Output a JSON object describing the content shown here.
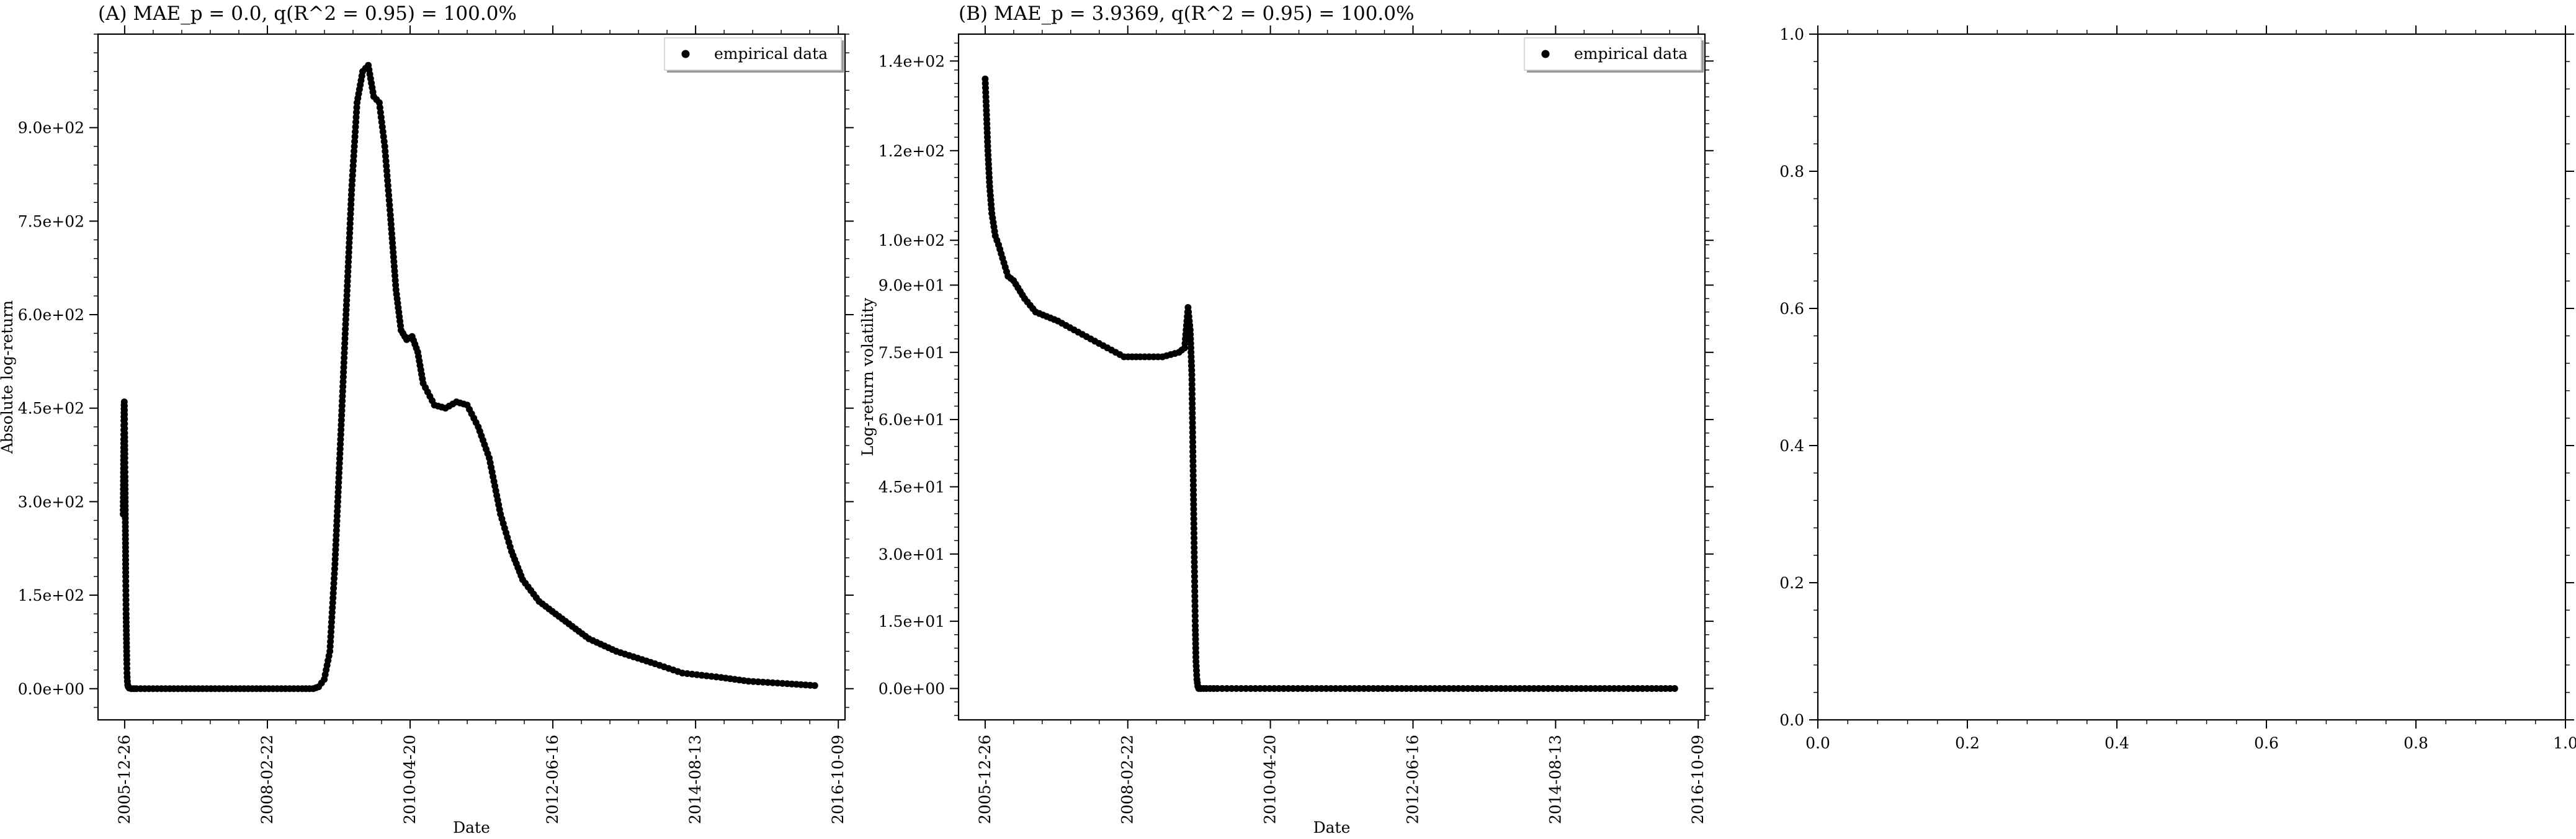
{
  "chart_data": [
    {
      "type": "scatter",
      "title": "(A) MAE_p = 0.0, q(R^2 = 0.95) = 100.0%",
      "xlabel": "Date",
      "ylabel": "Absolute log-return",
      "x_ticks": [
        "2005-12-26",
        "2008-02-22",
        "2010-04-20",
        "2012-06-16",
        "2014-08-13",
        "2016-10-09"
      ],
      "y_ticks": [
        "0.0e+00",
        "1.5e+02",
        "3.0e+02",
        "4.5e+02",
        "6.0e+02",
        "7.5e+02",
        "9.0e+02"
      ],
      "xlim": [
        "2005-08-01",
        "2016-11-15"
      ],
      "ylim": [
        -50,
        1050
      ],
      "legend": {
        "label": "empirical data",
        "position": "top-right"
      },
      "series": [
        {
          "label": "empirical data",
          "x": [
            "2005-12-18",
            "2005-12-19",
            "2005-12-20",
            "2005-12-21",
            "2005-12-22",
            "2005-12-23",
            "2005-12-24",
            "2005-12-25",
            "2005-12-26",
            "2005-12-27",
            "2005-12-28",
            "2005-12-29",
            "2005-12-30",
            "2005-12-31",
            "2006-01-01",
            "2006-01-02",
            "2006-01-03",
            "2006-01-04",
            "2006-01-05",
            "2006-01-06",
            "2006-01-07",
            "2006-01-08",
            "2006-01-10",
            "2006-01-12",
            "2006-01-15",
            "2006-01-20",
            "2006-02-01",
            "2006-03-01",
            "2006-06-01",
            "2006-09-01",
            "2006-12-01",
            "2007-03-01",
            "2007-06-01",
            "2007-09-01",
            "2007-12-01",
            "2008-03-01",
            "2008-06-01",
            "2008-09-01",
            "2008-11-01",
            "2008-12-01",
            "2009-01-01",
            "2009-02-01",
            "2009-03-01",
            "2009-04-01",
            "2009-05-01",
            "2009-06-01",
            "2009-07-01",
            "2009-08-01",
            "2009-09-01",
            "2009-10-01",
            "2009-11-01",
            "2009-12-01",
            "2010-01-01",
            "2010-02-01",
            "2010-03-01",
            "2010-04-01",
            "2010-05-01",
            "2010-06-01",
            "2010-07-01",
            "2010-09-01",
            "2010-11-01",
            "2011-01-01",
            "2011-03-01",
            "2011-05-01",
            "2011-07-01",
            "2011-09-01",
            "2011-11-01",
            "2012-01-01",
            "2012-04-01",
            "2012-07-01",
            "2012-10-01",
            "2013-01-01",
            "2013-06-01",
            "2014-01-01",
            "2014-06-01",
            "2015-01-01",
            "2015-06-01",
            "2016-01-01",
            "2016-06-01"
          ],
          "y": [
            280,
            320,
            360,
            400,
            430,
            455,
            460,
            440,
            410,
            370,
            340,
            300,
            260,
            220,
            180,
            150,
            120,
            100,
            80,
            60,
            40,
            25,
            12,
            6,
            3,
            1,
            0,
            0,
            0,
            0,
            0,
            0,
            0,
            0,
            0,
            0,
            0,
            0,
            0,
            3,
            15,
            60,
            200,
            400,
            600,
            800,
            940,
            990,
            1000,
            950,
            940,
            870,
            760,
            640,
            575,
            560,
            565,
            540,
            490,
            455,
            450,
            460,
            455,
            420,
            370,
            280,
            220,
            175,
            140,
            120,
            100,
            80,
            60,
            40,
            25,
            18,
            12,
            8,
            5
          ]
        }
      ]
    },
    {
      "type": "scatter",
      "title": "(B) MAE_p = 3.9369, q(R^2 = 0.95) = 100.0%",
      "xlabel": "Date",
      "ylabel": "Log-return volatility",
      "x_ticks": [
        "2005-12-26",
        "2008-02-22",
        "2010-04-20",
        "2012-06-16",
        "2014-08-13",
        "2016-10-09"
      ],
      "y_ticks": [
        "0.0e+00",
        "1.5e+01",
        "3.0e+01",
        "4.5e+01",
        "6.0e+01",
        "7.5e+01",
        "9.0e+01",
        "1.0e+02",
        "1.2e+02",
        "1.4e+02"
      ],
      "xlim": [
        "2005-08-01",
        "2016-11-15"
      ],
      "ylim": [
        -7,
        146
      ],
      "legend": {
        "label": "empirical data",
        "position": "top-right"
      },
      "series": [
        {
          "label": "empirical data",
          "x": [
            "2005-12-26",
            "2006-01-01",
            "2006-01-10",
            "2006-01-20",
            "2006-02-01",
            "2006-02-20",
            "2006-03-10",
            "2006-04-01",
            "2006-05-01",
            "2006-06-01",
            "2006-08-01",
            "2006-10-01",
            "2006-12-01",
            "2007-02-01",
            "2007-05-01",
            "2007-08-01",
            "2007-11-01",
            "2008-02-01",
            "2008-05-01",
            "2008-09-01",
            "2008-12-01",
            "2009-01-01",
            "2009-01-20",
            "2009-02-01",
            "2009-02-10",
            "2009-02-15",
            "2009-02-20",
            "2009-02-25",
            "2009-03-01",
            "2009-03-05",
            "2009-03-10",
            "2009-03-15",
            "2009-03-20",
            "2009-04-01",
            "2009-05-01",
            "2009-07-01",
            "2010-01-01",
            "2011-01-01",
            "2012-01-01",
            "2013-01-01",
            "2014-01-01",
            "2015-01-01",
            "2016-01-01",
            "2016-06-01"
          ],
          "y": [
            136,
            130,
            120,
            112,
            106,
            101,
            99,
            96,
            92,
            91,
            87,
            84,
            83,
            82,
            80,
            78,
            76,
            74,
            74,
            74,
            75,
            76,
            85,
            80,
            70,
            55,
            40,
            25,
            14,
            6,
            2,
            0.5,
            0,
            0,
            0,
            0,
            0,
            0,
            0,
            0,
            0,
            0,
            0,
            0
          ]
        }
      ]
    },
    {
      "type": "scatter",
      "x_ticks": [
        "0.0",
        "0.2",
        "0.4",
        "0.6",
        "0.8",
        "1.0"
      ],
      "y_ticks": [
        "0.0",
        "0.2",
        "0.4",
        "0.6",
        "0.8",
        "1.0"
      ],
      "xlim": [
        0,
        1
      ],
      "ylim": [
        0,
        1
      ],
      "series": []
    }
  ]
}
